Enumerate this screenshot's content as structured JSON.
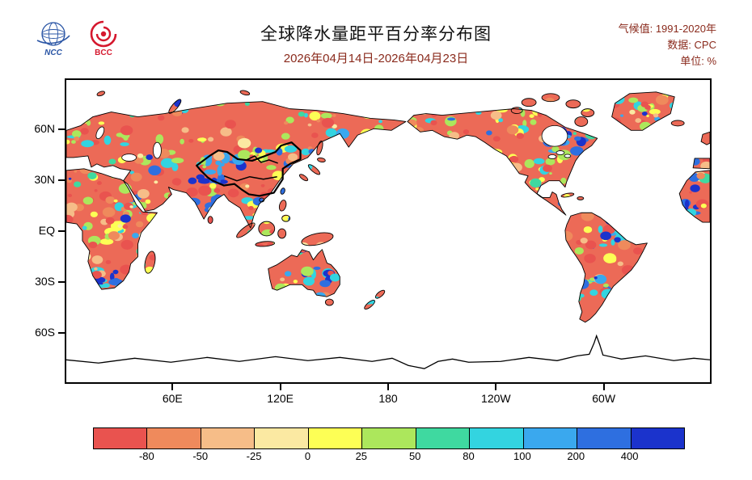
{
  "header": {
    "title": "全球降水量距平百分率分布图",
    "subtitle": "2026年04月14日-2026年04月23日",
    "accent_color": "#8a2a1c",
    "logos": [
      {
        "name": "NCC",
        "text": "NCC",
        "color": "#2a55a5"
      },
      {
        "name": "BCC",
        "text": "BCC",
        "color": "#d5182e"
      }
    ],
    "meta": [
      {
        "label": "气候值:",
        "value": "1991-2020年"
      },
      {
        "label": "数据:",
        "value": "CPC"
      },
      {
        "label": "单位:",
        "value": "%"
      }
    ]
  },
  "chart_data": {
    "type": "heatmap",
    "title": "全球降水量距平百分率分布图",
    "period": "2026年04月14日-2026年04月23日",
    "climatology": "1991-2020年",
    "source": "CPC",
    "unit": "%",
    "layout": "equirectangular world map, Pacific-centered (0E-360E), 90N-90S, colorbar legend below",
    "lat_ticks": [
      {
        "label": "60N",
        "lat": 60
      },
      {
        "label": "30N",
        "lat": 30
      },
      {
        "label": "EQ",
        "lat": 0
      },
      {
        "label": "30S",
        "lat": -30
      },
      {
        "label": "60S",
        "lat": -60
      }
    ],
    "lon_ticks": [
      {
        "label": "60E",
        "lon": 60
      },
      {
        "label": "120E",
        "lon": 120
      },
      {
        "label": "180",
        "lon": 180
      },
      {
        "label": "120W",
        "lon": 240
      },
      {
        "label": "60W",
        "lon": 300
      }
    ],
    "colorbar": {
      "boundaries": [
        "-80",
        "-50",
        "-25",
        "0",
        "25",
        "50",
        "80",
        "100",
        "200",
        "400"
      ],
      "colors": [
        "#e9534f",
        "#ef8a5c",
        "#f6bd88",
        "#fbe9a2",
        "#fdff55",
        "#ace75c",
        "#3fd9a0",
        "#33d4e0",
        "#3aa8ee",
        "#2e6fe0",
        "#1b33cc"
      ],
      "meaning": "precipitation anomaly percent: warm colors below normal, cool colors above normal"
    }
  }
}
